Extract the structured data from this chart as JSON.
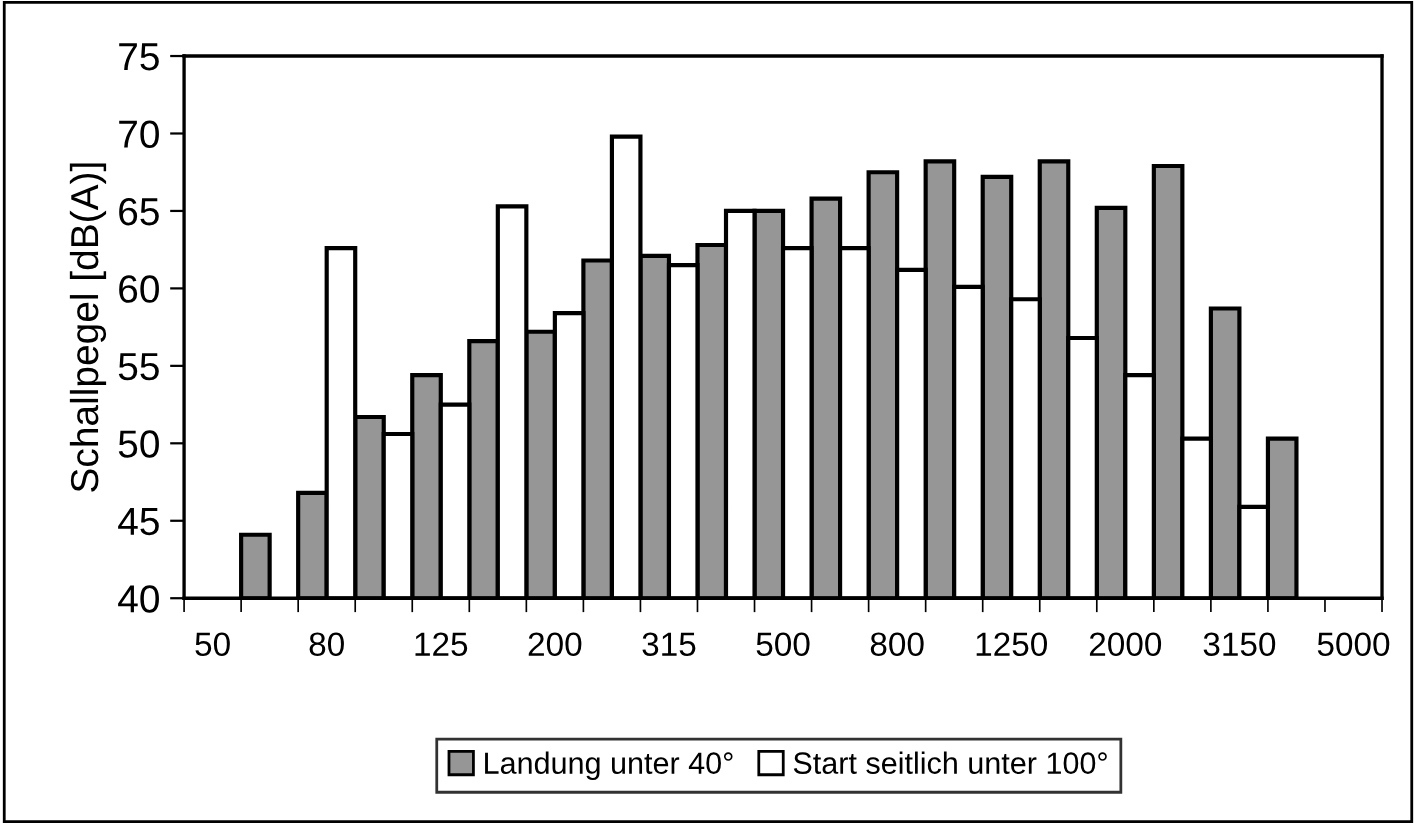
{
  "chart_data": {
    "type": "bar",
    "ylabel": "Schallpegel [dB(A)]",
    "categories": [
      "50",
      null,
      "80",
      null,
      "125",
      null,
      "200",
      null,
      "315",
      null,
      "500",
      null,
      "800",
      null,
      "1250",
      null,
      "2000",
      null,
      "3150",
      null,
      "5000"
    ],
    "series": [
      {
        "name": "Landung unter 40°",
        "color": "#969696",
        "values": [
          null,
          44.1,
          46.8,
          51.7,
          54.4,
          56.6,
          57.2,
          61.8,
          62.1,
          62.8,
          65.0,
          65.8,
          67.5,
          68.2,
          67.2,
          68.2,
          65.2,
          67.9,
          58.7,
          50.3,
          null
        ]
      },
      {
        "name": "Start seitlich unter 100°",
        "color": "#ffffff",
        "values": [
          null,
          null,
          62.6,
          50.6,
          52.5,
          65.3,
          58.4,
          69.8,
          61.5,
          65.0,
          62.6,
          62.6,
          61.2,
          60.1,
          59.3,
          56.8,
          54.4,
          50.3,
          45.9,
          null,
          null
        ]
      }
    ],
    "ylim": [
      40,
      75
    ],
    "yticks": [
      40,
      45,
      50,
      55,
      60,
      65,
      70,
      75
    ],
    "grid": false,
    "legend": "bottom"
  }
}
